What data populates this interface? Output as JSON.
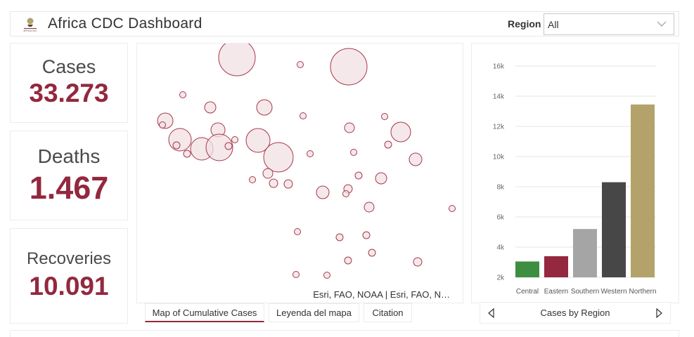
{
  "header": {
    "title": "Africa CDC Dashboard",
    "logo_text": "AFRICA CDC",
    "region_label": "Region",
    "region_value": "All"
  },
  "stats": [
    {
      "label": "Cases",
      "value": "33.273"
    },
    {
      "label": "Deaths",
      "value": "1.467"
    },
    {
      "label": "Recoveries",
      "value": "10.091"
    }
  ],
  "map": {
    "credit": "Esri, FAO, NOAA | Esri, FAO, N…",
    "tabs": [
      "Map of Cumulative Cases",
      "Leyenda del mapa",
      "Citation"
    ],
    "active_tab": 0
  },
  "chart_nav": {
    "label": "Cases by Region",
    "prev_icon": "triangle-left-icon",
    "next_icon": "triangle-right-icon"
  },
  "colors": {
    "accent": "#93283e",
    "bubble_fill": "#f0e0e3",
    "bubble_stroke": "#a8374d"
  },
  "chart_data": {
    "type": "bar",
    "title": "Cases by Region",
    "categories": [
      "Central",
      "Eastern",
      "Southern",
      "Western",
      "Northern"
    ],
    "values": [
      3050,
      3400,
      5200,
      8300,
      13450
    ],
    "colors": [
      "#3e8e41",
      "#93283e",
      "#a5a5a5",
      "#474747",
      "#b3a36a"
    ],
    "yticks": [
      "2k",
      "4k",
      "6k",
      "8k",
      "10k",
      "12k",
      "14k",
      "16k"
    ],
    "ylim": [
      2000,
      16000
    ],
    "grid": true
  }
}
